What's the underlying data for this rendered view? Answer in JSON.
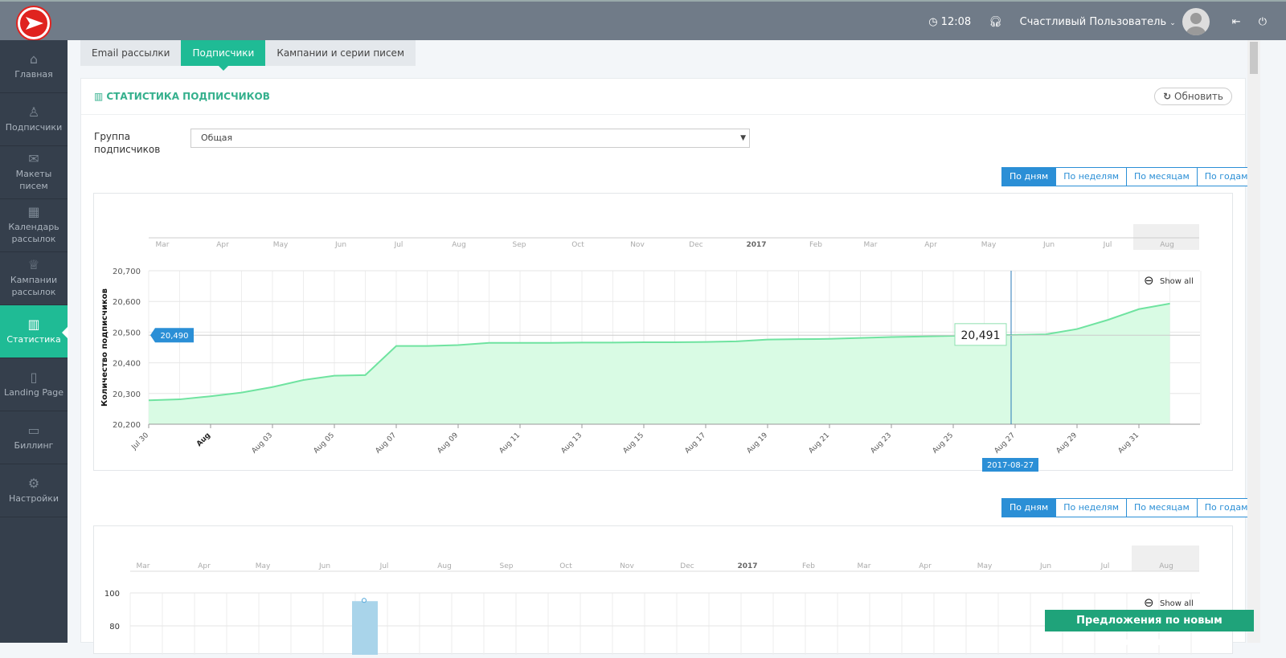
{
  "header": {
    "time": "12:08",
    "user_name": "Счастливый Пользователь"
  },
  "sidebar": {
    "items": [
      {
        "label": "Главная",
        "icon": "home-icon",
        "glyph": "⌂"
      },
      {
        "label": "Подписчики",
        "icon": "users-icon",
        "glyph": "♙"
      },
      {
        "label": "Макеты писем",
        "icon": "envelope-icon",
        "glyph": "✉"
      },
      {
        "label": "Календарь рассылок",
        "icon": "calendar-icon",
        "glyph": "▦"
      },
      {
        "label": "Кампании рассылок",
        "icon": "award-icon",
        "glyph": "♕"
      },
      {
        "label": "Статистика",
        "icon": "bar-chart-icon",
        "glyph": "▥",
        "active": true
      },
      {
        "label": "Landing Page",
        "icon": "file-icon",
        "glyph": "▯"
      },
      {
        "label": "Биллинг",
        "icon": "wallet-icon",
        "glyph": "▭"
      },
      {
        "label": "Настройки",
        "icon": "gear-icon",
        "glyph": "⚙"
      }
    ]
  },
  "tabs": [
    {
      "label": "Email рассылки"
    },
    {
      "label": "Подписчики",
      "active": true
    },
    {
      "label": "Кампании и серии писем"
    }
  ],
  "card": {
    "title": "СТАТИСТИКА ПОДПИСЧИКОВ",
    "refresh_label": "Обновить",
    "group_label": "Группа подписчиков",
    "group_value": "Общая"
  },
  "period_buttons": [
    "По дням",
    "По неделям",
    "По месяцам",
    "По годам"
  ],
  "show_all": "Show all",
  "feedback_label": "Предложения по новым функциям",
  "colors": {
    "accent": "#1fbb95",
    "blue": "#2b8fd6",
    "line": "#6fe3a0",
    "fill": "#d9fbe4"
  },
  "chart_data": [
    {
      "type": "area",
      "ylabel": "Количество подписчиков",
      "ylim": [
        20200,
        20700
      ],
      "yticks": [
        "20,200",
        "20,300",
        "20,400",
        "20,500",
        "20,600",
        "20,700"
      ],
      "navigator_labels": [
        "Mar",
        "Apr",
        "May",
        "Jun",
        "Jul",
        "Aug",
        "Sep",
        "Oct",
        "Nov",
        "Dec",
        "2017",
        "Feb",
        "Mar",
        "Apr",
        "May",
        "Jun",
        "Jul",
        "Aug"
      ],
      "xtick_labels": [
        "Jul 30",
        "Aug",
        "Aug 03",
        "Aug 05",
        "Aug 07",
        "Aug 09",
        "Aug 11",
        "Aug 13",
        "Aug 15",
        "Aug 17",
        "Aug 19",
        "Aug 21",
        "Aug 23",
        "Aug 25",
        "Aug 27",
        "Aug 29",
        "Aug 31"
      ],
      "x": [
        "2017-07-30",
        "2017-07-31",
        "2017-08-01",
        "2017-08-02",
        "2017-08-03",
        "2017-08-04",
        "2017-08-05",
        "2017-08-06",
        "2017-08-07",
        "2017-08-08",
        "2017-08-09",
        "2017-08-10",
        "2017-08-11",
        "2017-08-12",
        "2017-08-13",
        "2017-08-14",
        "2017-08-15",
        "2017-08-16",
        "2017-08-17",
        "2017-08-18",
        "2017-08-19",
        "2017-08-20",
        "2017-08-21",
        "2017-08-22",
        "2017-08-23",
        "2017-08-24",
        "2017-08-25",
        "2017-08-26",
        "2017-08-27",
        "2017-08-28",
        "2017-08-29",
        "2017-08-30",
        "2017-08-31",
        "2017-09-01"
      ],
      "values": [
        20278,
        20281,
        20291,
        20303,
        20321,
        20344,
        20358,
        20360,
        20455,
        20455,
        20458,
        20465,
        20465,
        20465,
        20466,
        20466,
        20467,
        20467,
        20468,
        20470,
        20476,
        20477,
        20478,
        20481,
        20484,
        20486,
        20488,
        20490,
        20491,
        20493,
        20510,
        20540,
        20575,
        20593
      ],
      "crosshair": {
        "x_label": "2017-08-27",
        "y_label": "20,490",
        "tooltip": "20,491"
      }
    },
    {
      "type": "bar",
      "ylim_visible": [
        80,
        100
      ],
      "yticks": [
        "80",
        "100"
      ],
      "navigator_labels": [
        "Mar",
        "Apr",
        "May",
        "Jun",
        "Jul",
        "Aug",
        "Sep",
        "Oct",
        "Nov",
        "Dec",
        "2017",
        "Feb",
        "Mar",
        "Apr",
        "May",
        "Jun",
        "Jul",
        "Aug"
      ],
      "bars": [
        {
          "value": 95,
          "color": "#a9d4ea"
        }
      ]
    }
  ]
}
